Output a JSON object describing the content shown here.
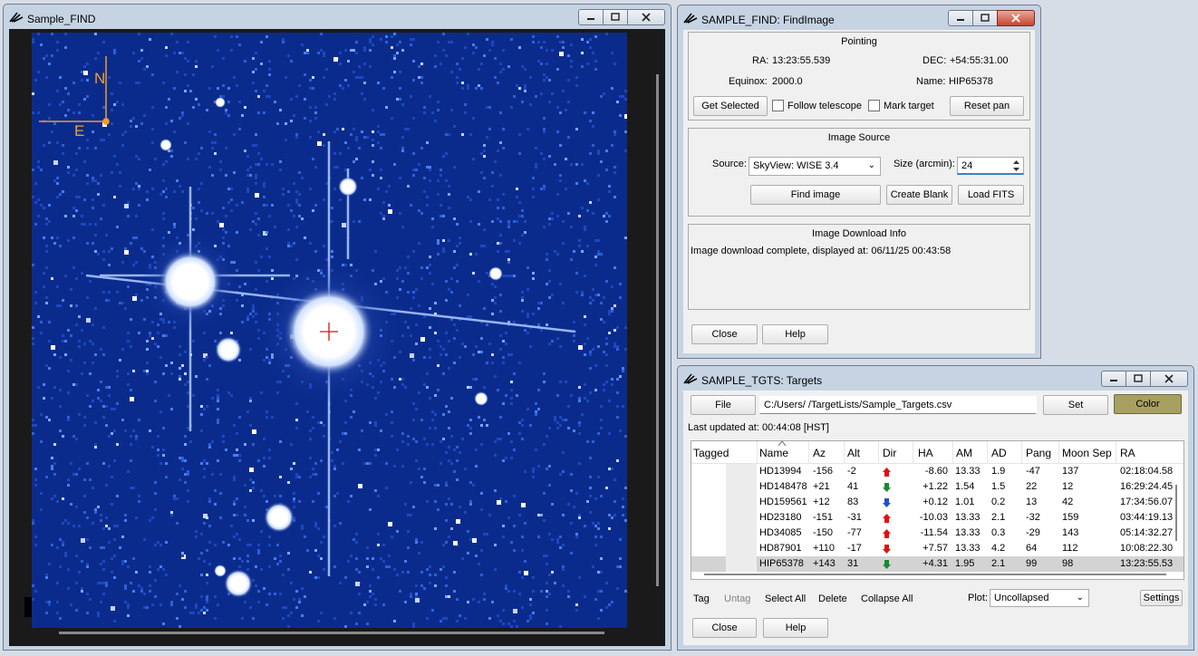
{
  "find_window": {
    "title": "Sample_FIND",
    "compass": {
      "north": "N",
      "east": "E"
    }
  },
  "findimage_window": {
    "title": "SAMPLE_FIND: FindImage",
    "pointing": {
      "title": "Pointing",
      "ra_label": "RA:",
      "ra_value": "13:23:55.539",
      "dec_label": "DEC:",
      "dec_value": "+54:55:31.00",
      "equinox_label": "Equinox:",
      "equinox_value": "2000.0",
      "name_label": "Name:",
      "name_value": "HIP65378",
      "get_selected": "Get Selected",
      "follow_telescope": "Follow telescope",
      "mark_target": "Mark target",
      "reset_pan": "Reset pan"
    },
    "image_source": {
      "title": "Image Source",
      "source_label": "Source:",
      "source_value": "SkyView: WISE 3.4",
      "size_label": "Size (arcmin):",
      "size_value": "24",
      "find_image": "Find image",
      "create_blank": "Create Blank",
      "load_fits": "Load FITS"
    },
    "download_info": {
      "title": "Image Download Info",
      "message": "Image download complete, displayed at: 06/11/25 00:43:58"
    },
    "close": "Close",
    "help": "Help"
  },
  "targets_window": {
    "title": "SAMPLE_TGTS: Targets",
    "file_button": "File",
    "file_path": "C:/Users/      /TargetLists/Sample_Targets.csv",
    "set_button": "Set",
    "color_button": "Color",
    "last_updated": "Last updated at: 00:44:08 [HST]",
    "columns": [
      "Tagged",
      "Name",
      "Az",
      "Alt",
      "Dir",
      "HA",
      "AM",
      "AD",
      "Pang",
      "Moon Sep",
      "RA"
    ],
    "rows": [
      {
        "name": "HD13994",
        "az": "-156",
        "alt": "-2",
        "dir": "up-red",
        "ha": "-8.60",
        "am": "13.33",
        "ad": "1.9",
        "pang": "-47",
        "moon_sep": "137",
        "ra": "02:18:04.58"
      },
      {
        "name": "HD148478",
        "az": "+21",
        "alt": "41",
        "dir": "down-green",
        "ha": "+1.22",
        "am": "1.54",
        "ad": "1.5",
        "pang": "22",
        "moon_sep": "12",
        "ra": "16:29:24.45"
      },
      {
        "name": "HD159561",
        "az": "+12",
        "alt": "83",
        "dir": "down-blue",
        "ha": "+0.12",
        "am": "1.01",
        "ad": "0.2",
        "pang": "13",
        "moon_sep": "42",
        "ra": "17:34:56.07"
      },
      {
        "name": "HD23180",
        "az": "-151",
        "alt": "-31",
        "dir": "up-red",
        "ha": "-10.03",
        "am": "13.33",
        "ad": "2.1",
        "pang": "-32",
        "moon_sep": "159",
        "ra": "03:44:19.13"
      },
      {
        "name": "HD34085",
        "az": "-150",
        "alt": "-77",
        "dir": "up-red",
        "ha": "-11.54",
        "am": "13.33",
        "ad": "0.3",
        "pang": "-29",
        "moon_sep": "143",
        "ra": "05:14:32.27"
      },
      {
        "name": "HD87901",
        "az": "+110",
        "alt": "-17",
        "dir": "down-red",
        "ha": "+7.57",
        "am": "13.33",
        "ad": "4.2",
        "pang": "64",
        "moon_sep": "112",
        "ra": "10:08:22.30"
      },
      {
        "name": "HIP65378",
        "az": "+143",
        "alt": "31",
        "dir": "down-green",
        "ha": "+4.31",
        "am": "1.95",
        "ad": "2.1",
        "pang": "99",
        "moon_sep": "98",
        "ra": "13:23:55.53"
      }
    ],
    "selected_row": "HIP65378",
    "actions": {
      "tag": "Tag",
      "untag": "Untag",
      "select_all": "Select All",
      "delete": "Delete",
      "collapse_all": "Collapse All",
      "plot_label": "Plot:",
      "plot_value": "Uncollapsed",
      "settings": "Settings"
    },
    "close": "Close",
    "help": "Help"
  },
  "colors": {
    "sky_background": "#0b2b8c",
    "compass": "#f0a020",
    "color_button": "#a8a060",
    "dir_red": "#e01010",
    "dir_green": "#1a8a30",
    "dir_blue": "#2050d0"
  }
}
